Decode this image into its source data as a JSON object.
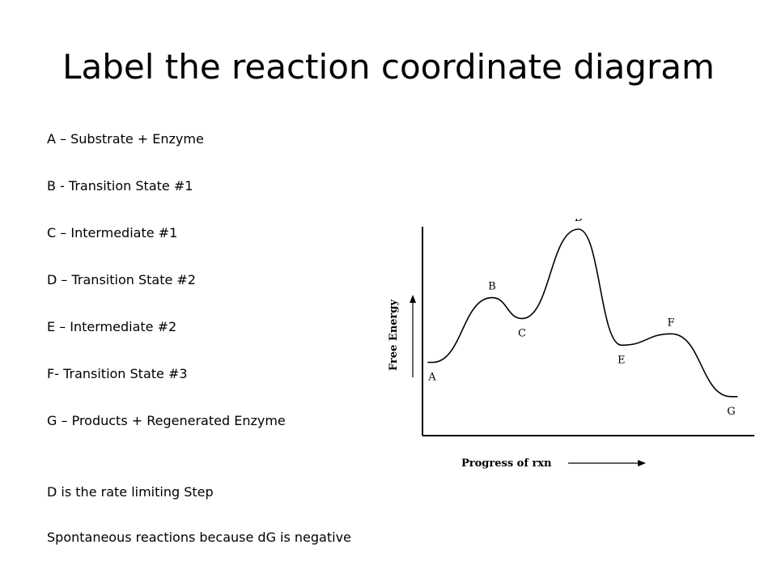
{
  "slide": {
    "title": "Label the reaction coordinate diagram"
  },
  "legend": [
    "A – Substrate + Enzyme",
    "B - Transition State #1",
    "C – Intermediate #1",
    "D – Transition State #2",
    "E – Intermediate #2",
    "F- Transition State #3",
    "G – Products + Regenerated Enzyme"
  ],
  "notes": {
    "rate_limiting": "D is the rate limiting Step",
    "spontaneous": "Spontaneous reactions because dG is negative"
  },
  "diagram": {
    "y_axis_label": "Free Energy",
    "x_axis_label": "Progress of rxn",
    "curve_color": "#000000",
    "points": [
      {
        "label": "A",
        "name": "Substrate + Enzyme",
        "progress": 0.03,
        "energy": 0.3
      },
      {
        "label": "B",
        "name": "Transition State #1",
        "progress": 0.21,
        "energy": 0.64
      },
      {
        "label": "C",
        "name": "Intermediate #1",
        "progress": 0.3,
        "energy": 0.53
      },
      {
        "label": "D",
        "name": "Transition State #2",
        "progress": 0.47,
        "energy": 1.0
      },
      {
        "label": "E",
        "name": "Intermediate #2",
        "progress": 0.6,
        "energy": 0.39
      },
      {
        "label": "F",
        "name": "Transition State #3",
        "progress": 0.75,
        "energy": 0.45
      },
      {
        "label": "G",
        "name": "Products + Regenerated Enzyme",
        "progress": 0.93,
        "energy": 0.12
      }
    ]
  }
}
